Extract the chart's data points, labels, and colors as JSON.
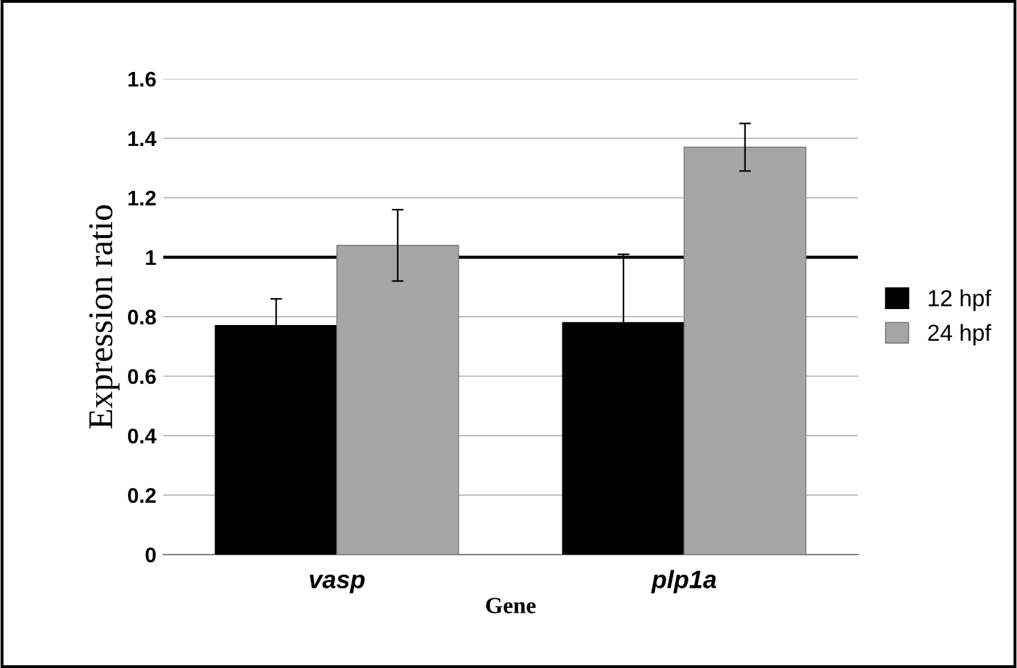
{
  "chart_data": {
    "type": "bar",
    "xlabel": "Gene",
    "ylabel": "Expression ratio",
    "categories": [
      "vasp",
      "plp1a"
    ],
    "series": [
      {
        "name": "12 hpf",
        "color": "#000000",
        "values": [
          0.77,
          0.78
        ],
        "errors": [
          0.09,
          0.23
        ]
      },
      {
        "name": "24 hpf",
        "color": "#a6a6a6",
        "values": [
          1.04,
          1.37
        ],
        "errors": [
          0.12,
          0.08
        ]
      }
    ],
    "ylim": [
      0,
      1.6
    ],
    "yticks": [
      0,
      {
        "value": 0.2,
        "label": "0.2"
      },
      {
        "value": 0.4,
        "label": "0.4"
      },
      {
        "value": 0.6,
        "label": "0.6"
      },
      {
        "value": 0.8,
        "label": "0.8"
      },
      1,
      {
        "value": 1.2,
        "label": "1.2"
      },
      {
        "value": 1.4,
        "label": "1.4"
      },
      {
        "value": 1.6,
        "label": "1.6"
      }
    ],
    "grid": "y",
    "legend": "right",
    "ref_lines": [
      {
        "axis": "y",
        "value": 1,
        "color": "#000000"
      }
    ]
  }
}
